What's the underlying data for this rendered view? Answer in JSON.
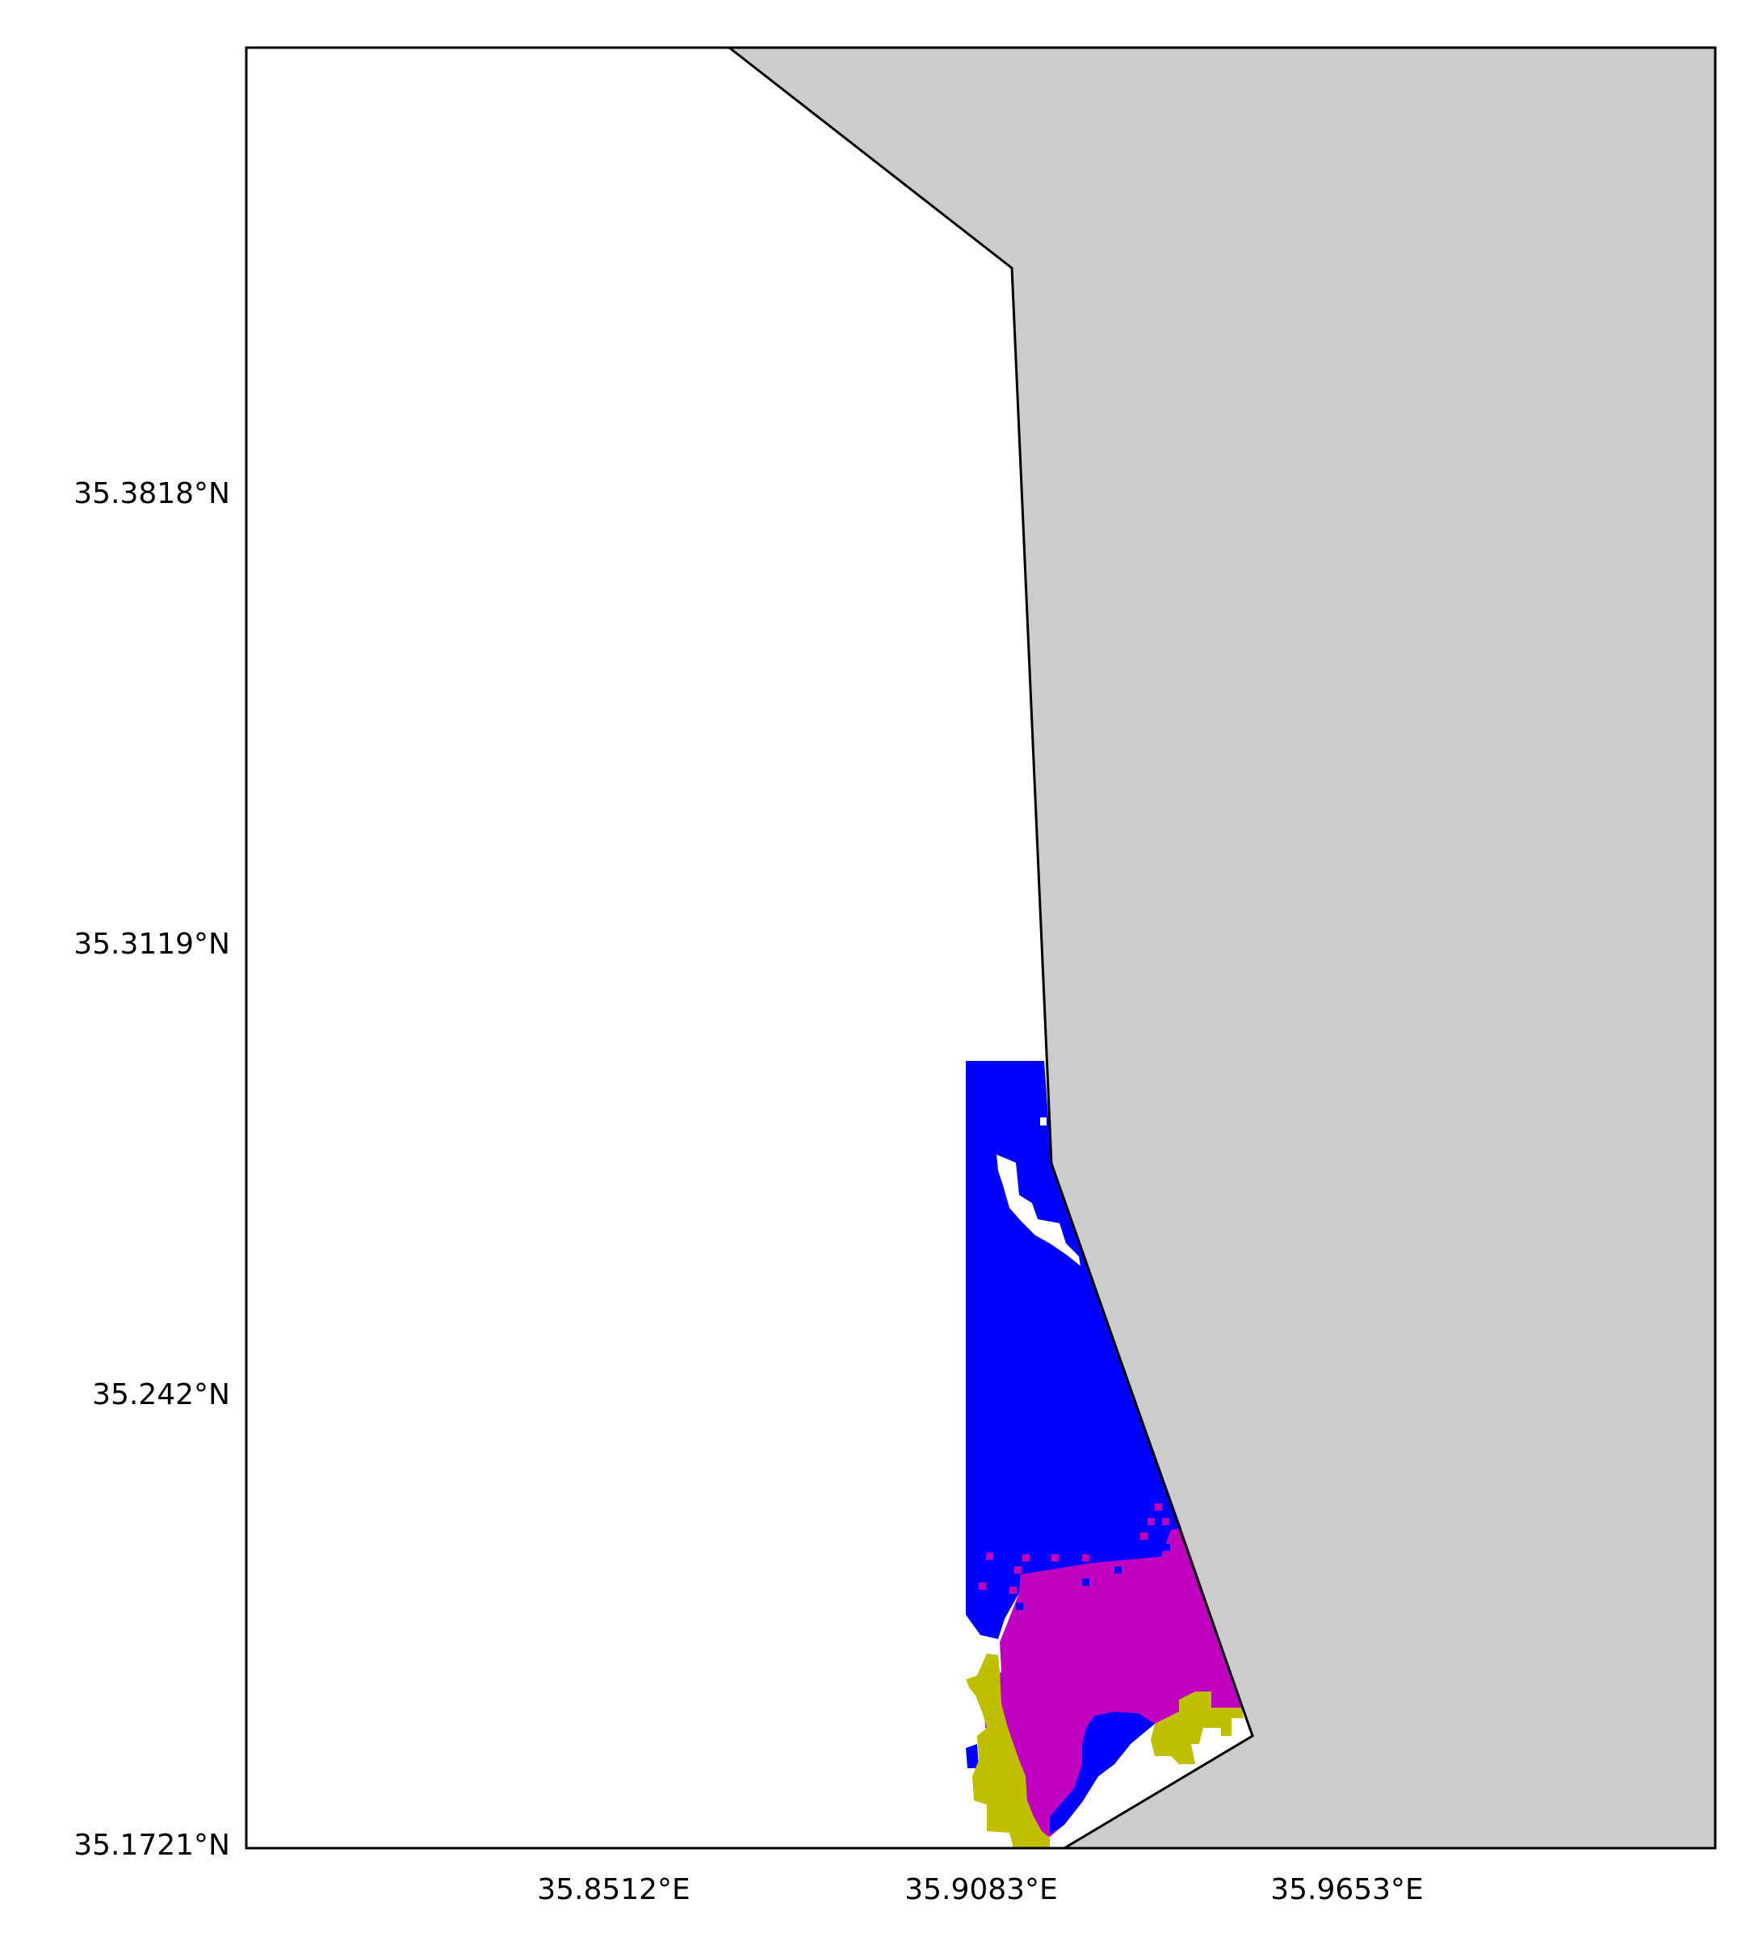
{
  "map": {
    "land_color": "#cccccc",
    "sea_color": "#ffffff",
    "frame_color": "#000000",
    "class_colors": {
      "class_a": "#0000ff",
      "class_b": "#bf00bf",
      "class_c": "#bfbf00"
    },
    "lat_ticks": [
      "35.3818°N",
      "35.3119°N",
      "35.242°N",
      "35.1721°N"
    ],
    "lon_ticks": [
      "35.8512°E",
      "35.9083°E",
      "35.9653°E"
    ]
  }
}
